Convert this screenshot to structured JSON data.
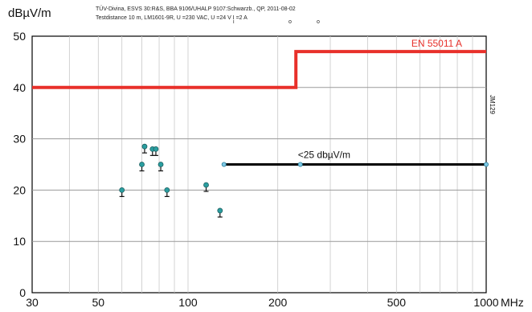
{
  "chart_data": {
    "type": "scatter",
    "title": "",
    "header_line1": "TÜV-Divina, ESVS 30:R&S, BBA 9106/UHALP 9107:Schwarzb., QP, 2011-08-02",
    "header_line2": "Testdistance 10 m, LM1601-9R, U       =230 VAC, U     =24 V I     =2 A",
    "header_sub_i": "i",
    "header_sub_o1": "o",
    "header_sub_o2": "o",
    "ylabel": "dBµV/m",
    "xlabel": "MHz",
    "side_label": "JM129",
    "x_scale": "log",
    "xlim": [
      30,
      1000
    ],
    "ylim": [
      0,
      50
    ],
    "x_ticks": [
      30,
      50,
      100,
      200,
      500,
      1000
    ],
    "x_tick_labels": [
      "30",
      "50",
      "100",
      "200",
      "500",
      "1000"
    ],
    "y_ticks": [
      0,
      10,
      20,
      30,
      40,
      50
    ],
    "y_tick_labels": [
      "0",
      "10",
      "20",
      "30",
      "40",
      "50"
    ],
    "grid": true,
    "limit_line": {
      "name": "EN 55011 A",
      "color": "#e8302a",
      "points": [
        [
          30,
          40
        ],
        [
          230,
          40
        ],
        [
          230,
          47
        ],
        [
          1000,
          47
        ]
      ]
    },
    "threshold_line": {
      "name": "<25 dbµV/m",
      "color": "#000000",
      "points": [
        [
          132,
          25
        ],
        [
          1000,
          25
        ]
      ],
      "markers": [
        [
          132,
          25
        ],
        [
          238,
          25
        ],
        [
          1000,
          25
        ]
      ]
    },
    "series": [
      {
        "color": "#2a9ea0",
        "x": [
          60,
          70,
          71.5,
          76,
          78,
          81,
          85,
          115,
          128
        ],
        "y": [
          20,
          25,
          28.5,
          28,
          28,
          25,
          20,
          21,
          16
        ]
      }
    ]
  }
}
